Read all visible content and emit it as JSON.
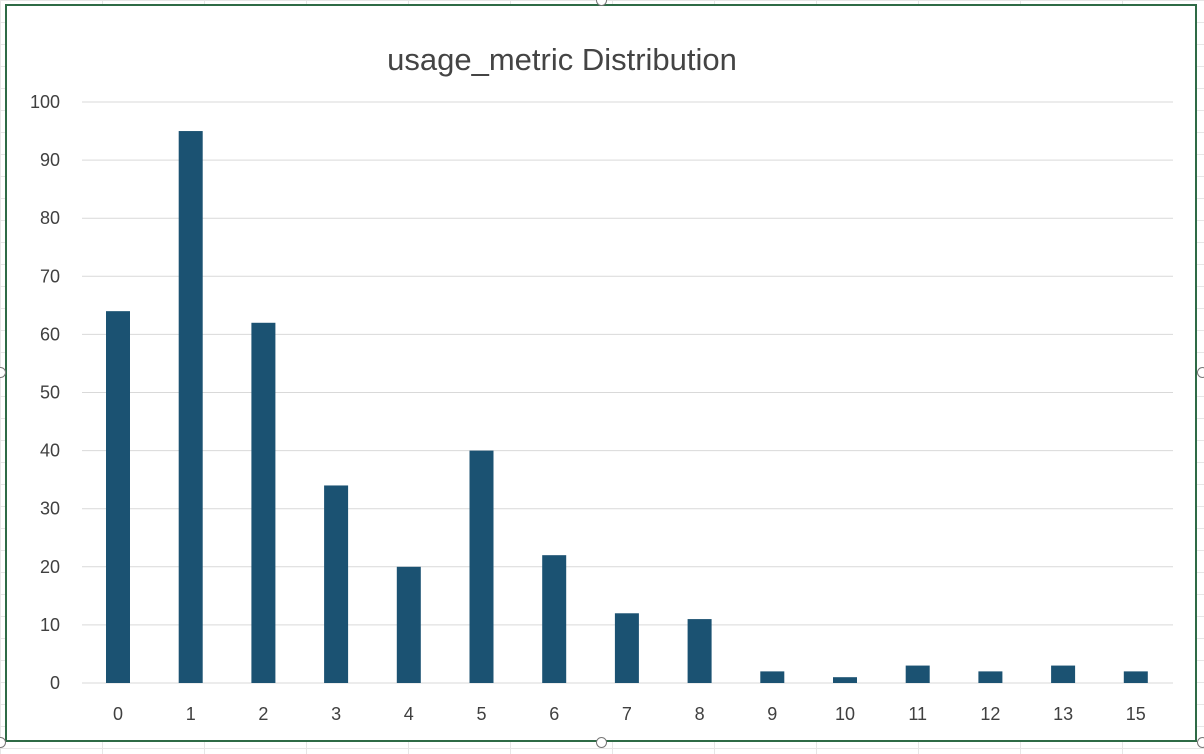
{
  "chart_data": {
    "type": "bar",
    "title": "usage_metric Distribution",
    "xlabel": "",
    "ylabel": "",
    "categories": [
      "0",
      "1",
      "2",
      "3",
      "4",
      "5",
      "6",
      "7",
      "8",
      "9",
      "10",
      "11",
      "12",
      "13",
      "15"
    ],
    "values": [
      64,
      95,
      62,
      34,
      20,
      40,
      22,
      12,
      11,
      2,
      1,
      3,
      2,
      3,
      2
    ],
    "ylim": [
      0,
      100
    ],
    "yticks": [
      "0",
      "10",
      "20",
      "30",
      "40",
      "50",
      "60",
      "70",
      "80",
      "90",
      "100"
    ],
    "grid": true,
    "legend": "none",
    "bar_color": "#1b5272",
    "gridline_color": "#d9d9d9"
  },
  "colors": {
    "frame_border": "#2e6b46",
    "title_text": "#444444",
    "axis_text": "#404040"
  }
}
